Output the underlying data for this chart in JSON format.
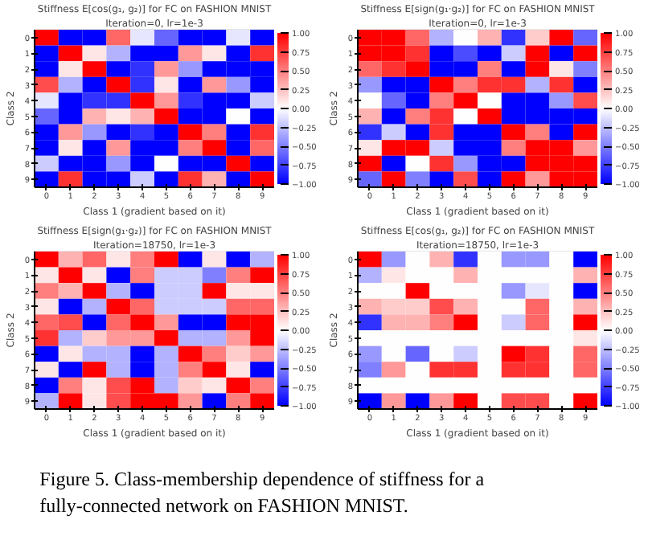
{
  "chart_data": [
    {
      "type": "heatmap",
      "title": "Stiffness E[cos(g₁, g₂)] for FC on FASHION MNIST",
      "subtitle": "Iteration=0, lr=1e-3",
      "xlabel": "Class 1 (gradient based on it)",
      "ylabel": "Class 2",
      "categories": [
        "0",
        "1",
        "2",
        "3",
        "4",
        "5",
        "6",
        "7",
        "8",
        "9"
      ],
      "y_categories": [
        "0",
        "1",
        "2",
        "3",
        "4",
        "5",
        "6",
        "7",
        "8",
        "9"
      ],
      "clim": [
        -1,
        1
      ],
      "cticks": [
        {
          "value": -1,
          "label": "−1.00"
        },
        {
          "value": -0.75,
          "label": "−0.75"
        },
        {
          "value": -0.5,
          "label": "−0.50"
        },
        {
          "value": -0.25,
          "label": "−0.25"
        },
        {
          "value": 0,
          "label": "0.00"
        },
        {
          "value": 0.25,
          "label": "0.25"
        },
        {
          "value": 0.5,
          "label": "0.50"
        },
        {
          "value": 0.75,
          "label": "0.75"
        },
        {
          "value": 1,
          "label": "1.00"
        }
      ],
      "cells": [
        [
          1,
          -1,
          -1,
          0.6,
          -0.1,
          -0.6,
          -1,
          -1,
          -0.1,
          -1
        ],
        [
          -1,
          1,
          0.1,
          -0.3,
          -1,
          -1,
          0.4,
          0.1,
          -1,
          0.8
        ],
        [
          -1,
          0.1,
          1,
          -1,
          -0.8,
          0.4,
          -0.4,
          -1,
          -1,
          -1
        ],
        [
          0.7,
          -0.3,
          -1,
          1,
          -0.8,
          0.1,
          -1,
          0.4,
          -0.4,
          -1
        ],
        [
          -0.1,
          -1,
          -0.8,
          -0.8,
          1,
          0.4,
          -0.8,
          -1,
          -1,
          -0.2
        ],
        [
          -0.6,
          -1,
          0.3,
          0.1,
          0.3,
          1,
          -1,
          -1,
          0,
          -1
        ],
        [
          -1,
          0.4,
          -0.4,
          -1,
          -0.8,
          -1,
          1,
          0.5,
          -1,
          0.8
        ],
        [
          -1,
          0.1,
          -1,
          0.4,
          -1,
          -1,
          0.5,
          1,
          -1,
          0.6
        ],
        [
          -0.2,
          -1,
          -1,
          -0.4,
          -1,
          0,
          -1,
          -1,
          1,
          -1
        ],
        [
          -1,
          0.8,
          -1,
          -1,
          -0.2,
          -1,
          0.8,
          0.3,
          -1,
          1
        ]
      ]
    },
    {
      "type": "heatmap",
      "title": "Stiffness E[sign(g₁·g₂)] for FC on FASHION MNIST",
      "subtitle": "Iteration=0, lr=1e-3",
      "xlabel": "Class 1 (gradient based on it)",
      "ylabel": "Class 2",
      "categories": [
        "0",
        "1",
        "2",
        "3",
        "4",
        "5",
        "6",
        "7",
        "8",
        "9"
      ],
      "y_categories": [
        "0",
        "1",
        "2",
        "3",
        "4",
        "5",
        "6",
        "7",
        "8",
        "9"
      ],
      "clim": [
        -1,
        1
      ],
      "cticks": [
        {
          "value": -1,
          "label": "−1.00"
        },
        {
          "value": -0.75,
          "label": "−0.75"
        },
        {
          "value": -0.5,
          "label": "−0.50"
        },
        {
          "value": -0.25,
          "label": "−0.25"
        },
        {
          "value": 0,
          "label": "0.00"
        },
        {
          "value": 0.25,
          "label": "0.25"
        },
        {
          "value": 0.5,
          "label": "0.50"
        },
        {
          "value": 0.75,
          "label": "0.75"
        },
        {
          "value": 1,
          "label": "1.00"
        }
      ],
      "cells": [
        [
          1,
          1,
          0.6,
          -0.3,
          0,
          0.3,
          -0.8,
          0.2,
          1,
          -0.6
        ],
        [
          1,
          1,
          0.8,
          -1,
          -0.7,
          -1,
          -0.2,
          1,
          -1,
          1
        ],
        [
          0.6,
          0.8,
          1,
          -1,
          -1,
          0.5,
          -1,
          1,
          0.1,
          -0.5
        ],
        [
          -0.4,
          -1,
          -1,
          1,
          0.5,
          0.8,
          0.8,
          -0.3,
          0.8,
          -1
        ],
        [
          0,
          -0.6,
          -1,
          0.5,
          1,
          0,
          -1,
          -1,
          -0.4,
          0.7
        ],
        [
          0.3,
          -1,
          0.5,
          0.8,
          0,
          1,
          -1,
          -1,
          -1,
          -1
        ],
        [
          -0.8,
          -0.2,
          -1,
          0.8,
          -1,
          -1,
          1,
          0.5,
          -1,
          1
        ],
        [
          0.1,
          1,
          1,
          -0.2,
          -1,
          -1,
          0.5,
          1,
          1,
          0.4
        ],
        [
          1,
          -1,
          0,
          0.8,
          -0.4,
          -1,
          -1,
          1,
          1,
          1
        ],
        [
          -0.6,
          1,
          -0.5,
          -1,
          0.7,
          -1,
          1,
          0.4,
          1,
          1
        ]
      ]
    },
    {
      "type": "heatmap",
      "title": "Stiffness E[sign(g₁·g₂)] for FC on FASHION MNIST",
      "subtitle": "Iteration=18750, lr=1e-3",
      "xlabel": "Class 1 (gradient based on it)",
      "ylabel": "Class 2",
      "categories": [
        "0",
        "1",
        "2",
        "3",
        "4",
        "5",
        "6",
        "7",
        "8",
        "9"
      ],
      "y_categories": [
        "0",
        "1",
        "2",
        "3",
        "4",
        "5",
        "6",
        "7",
        "8",
        "9"
      ],
      "clim": [
        -1,
        1
      ],
      "cticks": [
        {
          "value": -1,
          "label": "−1.00"
        },
        {
          "value": -0.75,
          "label": "−0.75"
        },
        {
          "value": -0.5,
          "label": "−0.50"
        },
        {
          "value": -0.25,
          "label": "−0.25"
        },
        {
          "value": 0,
          "label": "0.00"
        },
        {
          "value": 0.25,
          "label": "0.25"
        },
        {
          "value": 0.5,
          "label": "0.50"
        },
        {
          "value": 0.75,
          "label": "0.75"
        },
        {
          "value": 1,
          "label": "1.00"
        }
      ],
      "cells": [
        [
          1,
          0.3,
          0.6,
          0.1,
          0.5,
          1,
          -1,
          0.1,
          -1,
          -0.3
        ],
        [
          0.1,
          1,
          0.1,
          -1,
          0.5,
          -0.2,
          -0.2,
          -0.5,
          0.5,
          1
        ],
        [
          0.5,
          0.3,
          1,
          -0.3,
          -1,
          -0.2,
          -0.2,
          1,
          0.1,
          0.1
        ],
        [
          0.1,
          -1,
          -0.3,
          1,
          0.6,
          -0.2,
          -0.2,
          -0.2,
          0.6,
          0.6
        ],
        [
          0.6,
          0.7,
          -1,
          0.6,
          1,
          0.4,
          -1,
          -1,
          1,
          1
        ],
        [
          0.8,
          -0.3,
          0.2,
          0.4,
          0.4,
          1,
          -0.3,
          -0.3,
          0.4,
          1
        ],
        [
          -1,
          0.1,
          -0.3,
          -0.3,
          -1,
          -0.3,
          1,
          0.5,
          0.2,
          0.4
        ],
        [
          0.1,
          -1,
          1,
          -0.3,
          -1,
          -0.3,
          0.5,
          1,
          0.1,
          -1
        ],
        [
          -1,
          0.5,
          0.1,
          0.7,
          1,
          -0.3,
          0.2,
          0.1,
          1,
          0.5
        ],
        [
          -0.3,
          1,
          0.1,
          0.7,
          1,
          1,
          0.4,
          -1,
          0.5,
          1
        ]
      ]
    },
    {
      "type": "heatmap",
      "title": "Stiffness E[cos(g₁, g₂)] for FC on FASHION MNIST",
      "subtitle": "Iteration=18750, lr=1e-3",
      "xlabel": "Class 1 (gradient based on it)",
      "ylabel": "Class 2",
      "categories": [
        "0",
        "1",
        "2",
        "3",
        "4",
        "5",
        "6",
        "7",
        "8",
        "9"
      ],
      "y_categories": [
        "0",
        "1",
        "2",
        "3",
        "4",
        "5",
        "6",
        "7",
        "8",
        "9"
      ],
      "clim": [
        -1,
        1
      ],
      "cticks": [
        {
          "value": -1,
          "label": "−1.00"
        },
        {
          "value": -0.75,
          "label": "−0.75"
        },
        {
          "value": -0.5,
          "label": "−0.50"
        },
        {
          "value": -0.25,
          "label": "−0.25"
        },
        {
          "value": 0,
          "label": "0.00"
        },
        {
          "value": 0.25,
          "label": "0.25"
        },
        {
          "value": 0.5,
          "label": "0.50"
        },
        {
          "value": 0.75,
          "label": "0.75"
        },
        {
          "value": 1,
          "label": "1.00"
        }
      ],
      "cells": [
        [
          1,
          -0.4,
          0,
          0.3,
          -0.8,
          0,
          -0.4,
          -0.4,
          0,
          -1
        ],
        [
          -0.3,
          0.1,
          0,
          0,
          0.3,
          0,
          0,
          0,
          0,
          0.3
        ],
        [
          0,
          0,
          1,
          0,
          0,
          0,
          -0.4,
          -0.1,
          0,
          -1
        ],
        [
          0.3,
          0.2,
          0.2,
          0.7,
          0.3,
          0,
          0,
          0.6,
          0,
          0.3
        ],
        [
          -0.8,
          0.3,
          0.3,
          0.5,
          1,
          0,
          -0.2,
          0.6,
          0,
          1
        ],
        [
          0,
          0,
          0,
          0,
          0,
          0,
          0,
          0,
          0,
          0.1
        ],
        [
          -0.4,
          0,
          -0.6,
          0,
          -0.2,
          0,
          1,
          0.8,
          0,
          0.6
        ],
        [
          -0.5,
          0.4,
          0,
          0.8,
          0.8,
          0,
          0.8,
          0.8,
          0,
          0.6
        ],
        [
          0,
          0,
          0,
          0,
          0,
          0,
          0,
          0,
          0,
          0
        ],
        [
          -1,
          0.4,
          -1,
          0.4,
          1,
          0,
          0.7,
          0.7,
          0,
          1
        ]
      ],
      "annotations": [
        "Figure 5. Class-membership dependence of stiffness for a fully-connected network on FASHION MNIST."
      ]
    }
  ]
}
